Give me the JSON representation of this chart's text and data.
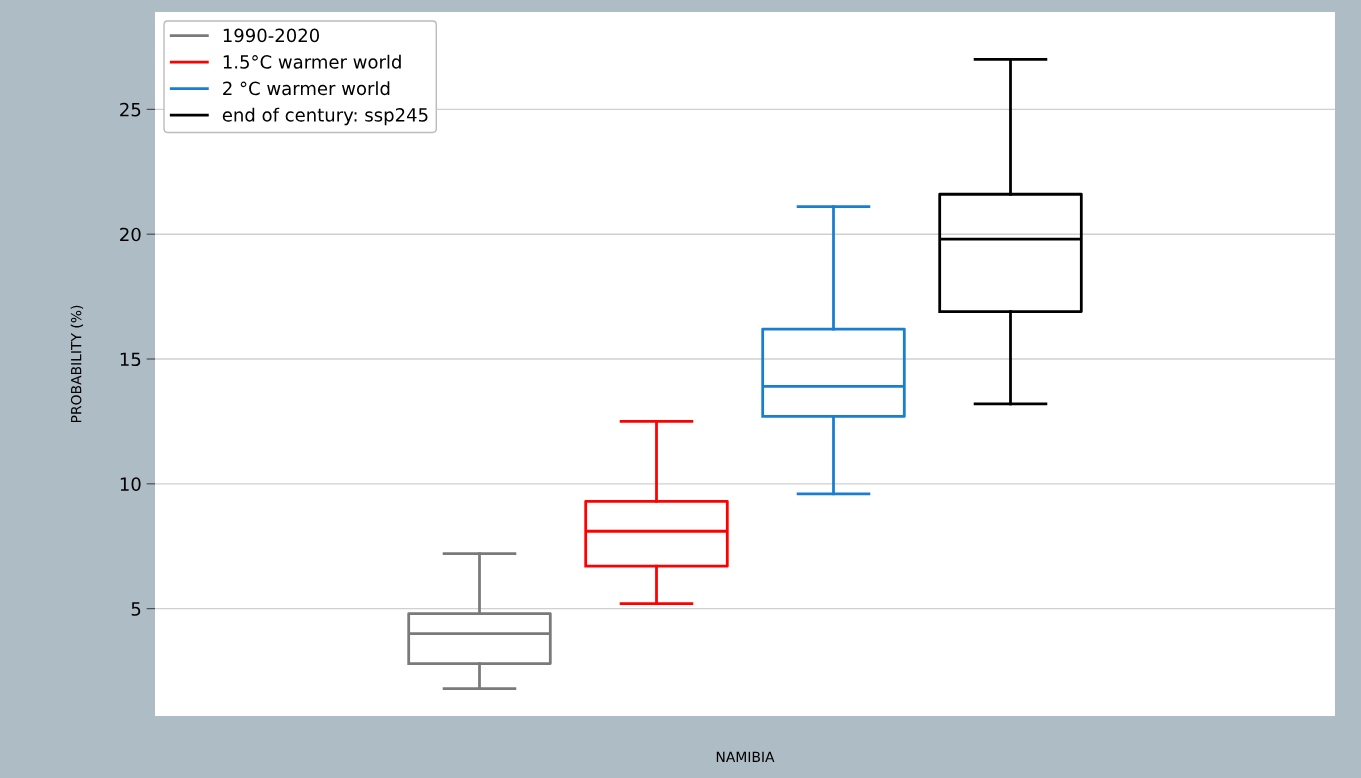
{
  "chart_data": {
    "type": "box",
    "xlabel": "NAMIBIA",
    "ylabel": "PROBABILITY (%)",
    "categories": [
      null
    ],
    "series": [
      {
        "name": "1990-2020",
        "color": "#7a7a7a",
        "boxes": [
          {
            "low": 1.8,
            "q1": 2.8,
            "median": 4.0,
            "q3": 4.8,
            "high": 7.2
          }
        ]
      },
      {
        "name": "1.5°C warmer world",
        "color": "#ff0000",
        "boxes": [
          {
            "low": 5.2,
            "q1": 6.7,
            "median": 8.1,
            "q3": 9.3,
            "high": 12.5
          }
        ]
      },
      {
        "name": "2 °C warmer world",
        "color": "#1a7ed0",
        "boxes": [
          {
            "low": 9.6,
            "q1": 12.7,
            "median": 13.9,
            "q3": 16.2,
            "high": 21.1
          }
        ]
      },
      {
        "name": "end of century: ssp245",
        "color": "#000000",
        "boxes": [
          {
            "low": 13.2,
            "q1": 16.9,
            "median": 19.8,
            "q3": 21.6,
            "high": 27.0
          }
        ]
      }
    ],
    "ylim": [
      0.7,
      28.9
    ],
    "yticks": [
      5,
      10,
      15,
      20,
      25
    ],
    "grid": "y",
    "legend": "top left"
  }
}
